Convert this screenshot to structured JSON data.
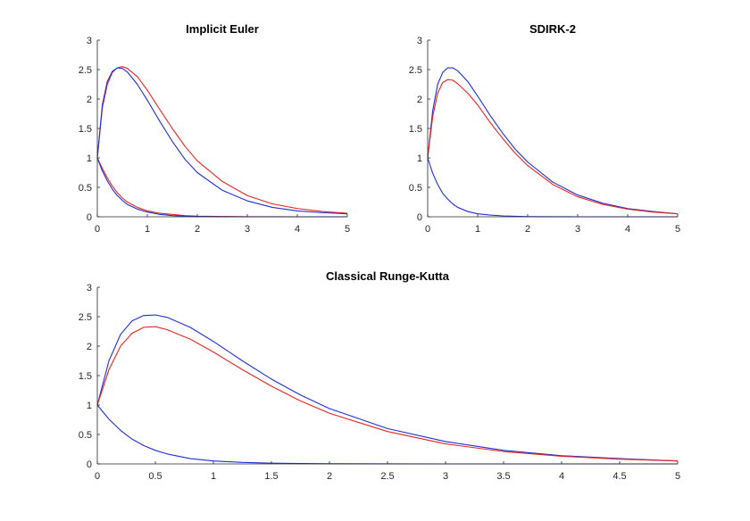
{
  "colors": {
    "red": "#e8241e",
    "blue": "#1f2fd6",
    "axis": "#262626"
  },
  "chart_data": [
    {
      "type": "line",
      "title": "Implicit Euler",
      "xlim": [
        0,
        5
      ],
      "ylim": [
        0,
        3
      ],
      "xticks": [
        0,
        1,
        2,
        3,
        4,
        5
      ],
      "xtick_labels": [
        "0",
        "1",
        "2",
        "3",
        "4",
        "5"
      ],
      "yticks": [
        0,
        0.5,
        1,
        1.5,
        2,
        2.5,
        3
      ],
      "ytick_labels": [
        "0",
        "0.5",
        "1",
        "1.5",
        "2",
        "2.5",
        "3"
      ],
      "grid": false,
      "series": [
        {
          "color": "#e8241e",
          "x": [
            0,
            0.1,
            0.2,
            0.3,
            0.4,
            0.5,
            0.6,
            0.8,
            1.0,
            1.25,
            1.5,
            1.75,
            2.0,
            2.5,
            3.0,
            3.5,
            4.0,
            4.5,
            5.0
          ],
          "y": [
            1.0,
            1.85,
            2.25,
            2.45,
            2.53,
            2.55,
            2.52,
            2.38,
            2.15,
            1.82,
            1.5,
            1.2,
            0.95,
            0.6,
            0.36,
            0.22,
            0.14,
            0.09,
            0.06
          ]
        },
        {
          "color": "#1f2fd6",
          "x": [
            0,
            0.1,
            0.2,
            0.3,
            0.4,
            0.5,
            0.6,
            0.8,
            1.0,
            1.25,
            1.5,
            1.75,
            2.0,
            2.5,
            3.0,
            3.5,
            4.0,
            4.5,
            5.0
          ],
          "y": [
            1.0,
            1.9,
            2.3,
            2.47,
            2.53,
            2.52,
            2.46,
            2.25,
            1.98,
            1.62,
            1.28,
            0.98,
            0.75,
            0.45,
            0.27,
            0.16,
            0.1,
            0.07,
            0.05
          ]
        },
        {
          "color": "#e8241e",
          "x": [
            0,
            0.1,
            0.2,
            0.3,
            0.4,
            0.5,
            0.6,
            0.8,
            1.0,
            1.25,
            1.5,
            1.75,
            2.0,
            2.5,
            3.0,
            3.5,
            4.0,
            4.5,
            5.0
          ],
          "y": [
            1.0,
            0.82,
            0.66,
            0.52,
            0.41,
            0.32,
            0.25,
            0.16,
            0.1,
            0.06,
            0.04,
            0.02,
            0.01,
            0.005,
            0.002,
            0.001,
            0,
            0,
            0
          ]
        },
        {
          "color": "#1f2fd6",
          "x": [
            0,
            0.1,
            0.2,
            0.3,
            0.4,
            0.5,
            0.6,
            0.8,
            1.0,
            1.25,
            1.5,
            1.75,
            2.0,
            2.5,
            3.0,
            3.5,
            4.0,
            4.5,
            5.0
          ],
          "y": [
            1.0,
            0.78,
            0.61,
            0.47,
            0.36,
            0.28,
            0.21,
            0.13,
            0.08,
            0.04,
            0.02,
            0.01,
            0.005,
            0.002,
            0,
            0,
            0,
            0,
            0
          ]
        }
      ]
    },
    {
      "type": "line",
      "title": "SDIRK-2",
      "xlim": [
        0,
        5
      ],
      "ylim": [
        0,
        3
      ],
      "xticks": [
        0,
        1,
        2,
        3,
        4,
        5
      ],
      "xtick_labels": [
        "0",
        "1",
        "2",
        "3",
        "4",
        "5"
      ],
      "yticks": [
        0,
        0.5,
        1,
        1.5,
        2,
        2.5,
        3
      ],
      "ytick_labels": [
        "0",
        "0.5",
        "1",
        "1.5",
        "2",
        "2.5",
        "3"
      ],
      "grid": false,
      "series": [
        {
          "color": "#1f2fd6",
          "x": [
            0,
            0.1,
            0.2,
            0.3,
            0.4,
            0.5,
            0.6,
            0.8,
            1.0,
            1.25,
            1.5,
            1.75,
            2.0,
            2.5,
            3.0,
            3.5,
            4.0,
            4.5,
            5.0
          ],
          "y": [
            1.0,
            1.8,
            2.25,
            2.45,
            2.53,
            2.53,
            2.48,
            2.3,
            2.05,
            1.72,
            1.42,
            1.15,
            0.93,
            0.59,
            0.37,
            0.23,
            0.14,
            0.09,
            0.05
          ]
        },
        {
          "color": "#e8241e",
          "x": [
            0,
            0.1,
            0.2,
            0.3,
            0.4,
            0.5,
            0.6,
            0.8,
            1.0,
            1.25,
            1.5,
            1.75,
            2.0,
            2.5,
            3.0,
            3.5,
            4.0,
            4.5,
            5.0
          ],
          "y": [
            1.0,
            1.7,
            2.1,
            2.28,
            2.33,
            2.32,
            2.26,
            2.1,
            1.9,
            1.6,
            1.33,
            1.08,
            0.87,
            0.55,
            0.34,
            0.21,
            0.13,
            0.08,
            0.05
          ]
        },
        {
          "color": "#1f2fd6",
          "x": [
            0,
            0.1,
            0.2,
            0.3,
            0.4,
            0.5,
            0.6,
            0.8,
            1.0,
            1.25,
            1.5,
            1.75,
            2.0,
            2.5,
            3.0,
            3.5,
            4.0,
            4.5,
            5.0
          ],
          "y": [
            1.0,
            0.74,
            0.55,
            0.4,
            0.3,
            0.22,
            0.16,
            0.09,
            0.05,
            0.03,
            0.015,
            0.008,
            0.004,
            0.001,
            0,
            0,
            0,
            0,
            0
          ]
        }
      ]
    },
    {
      "type": "line",
      "title": "Classical Runge-Kutta",
      "xlim": [
        0,
        5
      ],
      "ylim": [
        0,
        3
      ],
      "xticks": [
        0,
        0.5,
        1,
        1.5,
        2,
        2.5,
        3,
        3.5,
        4,
        4.5,
        5
      ],
      "xtick_labels": [
        "0",
        "0.5",
        "1",
        "1.5",
        "2",
        "2.5",
        "3",
        "3.5",
        "4",
        "4.5",
        "5"
      ],
      "yticks": [
        0,
        0.5,
        1,
        1.5,
        2,
        2.5,
        3
      ],
      "ytick_labels": [
        "0",
        "0.5",
        "1",
        "1.5",
        "2",
        "2.5",
        "3"
      ],
      "grid": false,
      "series": [
        {
          "color": "#1f2fd6",
          "x": [
            0,
            0.1,
            0.2,
            0.3,
            0.4,
            0.5,
            0.6,
            0.8,
            1.0,
            1.25,
            1.5,
            1.75,
            2.0,
            2.5,
            3.0,
            3.5,
            4.0,
            4.5,
            5.0
          ],
          "y": [
            1.0,
            1.75,
            2.2,
            2.43,
            2.52,
            2.53,
            2.49,
            2.32,
            2.08,
            1.75,
            1.44,
            1.17,
            0.94,
            0.6,
            0.38,
            0.23,
            0.14,
            0.09,
            0.05
          ]
        },
        {
          "color": "#e8241e",
          "x": [
            0,
            0.1,
            0.2,
            0.3,
            0.4,
            0.5,
            0.6,
            0.8,
            1.0,
            1.25,
            1.5,
            1.75,
            2.0,
            2.5,
            3.0,
            3.5,
            4.0,
            4.5,
            5.0
          ],
          "y": [
            1.0,
            1.6,
            2.0,
            2.22,
            2.32,
            2.33,
            2.28,
            2.12,
            1.9,
            1.6,
            1.32,
            1.07,
            0.86,
            0.55,
            0.34,
            0.21,
            0.13,
            0.08,
            0.05
          ]
        },
        {
          "color": "#1f2fd6",
          "x": [
            0,
            0.1,
            0.2,
            0.3,
            0.4,
            0.5,
            0.6,
            0.8,
            1.0,
            1.25,
            1.5,
            1.75,
            2.0,
            2.5,
            3.0,
            3.5,
            4.0,
            4.5,
            5.0
          ],
          "y": [
            1.0,
            0.76,
            0.57,
            0.42,
            0.31,
            0.23,
            0.17,
            0.09,
            0.05,
            0.025,
            0.012,
            0.006,
            0.003,
            0.001,
            0,
            0,
            0,
            0,
            0
          ]
        }
      ]
    }
  ]
}
